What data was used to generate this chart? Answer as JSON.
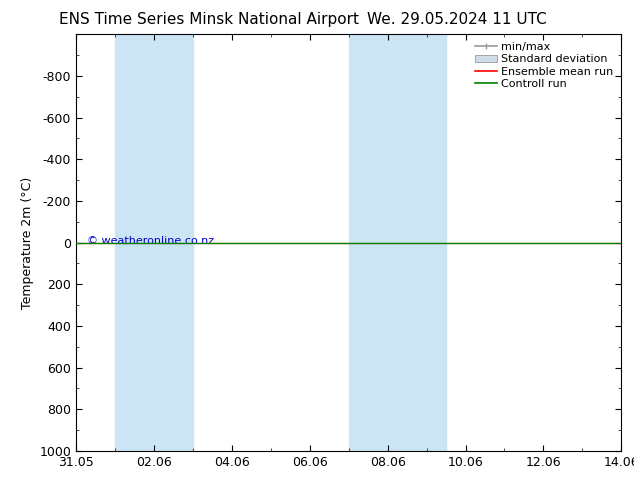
{
  "title_left": "ENS Time Series Minsk National Airport",
  "title_right": "We. 29.05.2024 11 UTC",
  "ylabel": "Temperature 2m (°C)",
  "ylim_top": -1000,
  "ylim_bottom": 1000,
  "yticks": [
    -800,
    -600,
    -400,
    -200,
    0,
    200,
    400,
    600,
    800,
    1000
  ],
  "xtick_labels": [
    "31.05",
    "02.06",
    "04.06",
    "06.06",
    "08.06",
    "10.06",
    "12.06",
    "14.06"
  ],
  "xtick_positions": [
    0,
    2,
    4,
    6,
    8,
    10,
    12,
    14
  ],
  "xlim": [
    0,
    14
  ],
  "shaded_bands": [
    {
      "xstart": 1.0,
      "xend": 3.0
    },
    {
      "xstart": 7.0,
      "xend": 9.5
    }
  ],
  "shaded_color": "#cce5f5",
  "green_line_y": 0,
  "background_color": "#ffffff",
  "plot_bg_color": "#ffffff",
  "copyright_text": "© weatheronline.co.nz",
  "copyright_color": "#0000cc",
  "font_size_title": 11,
  "font_size_axis": 9,
  "font_size_legend": 8,
  "font_size_ylabel": 9,
  "legend_labels": [
    "min/max",
    "Standard deviation",
    "Ensemble mean run",
    "Controll run"
  ],
  "legend_colors": [
    "#999999",
    "#cccccc",
    "#ff0000",
    "#008000"
  ]
}
